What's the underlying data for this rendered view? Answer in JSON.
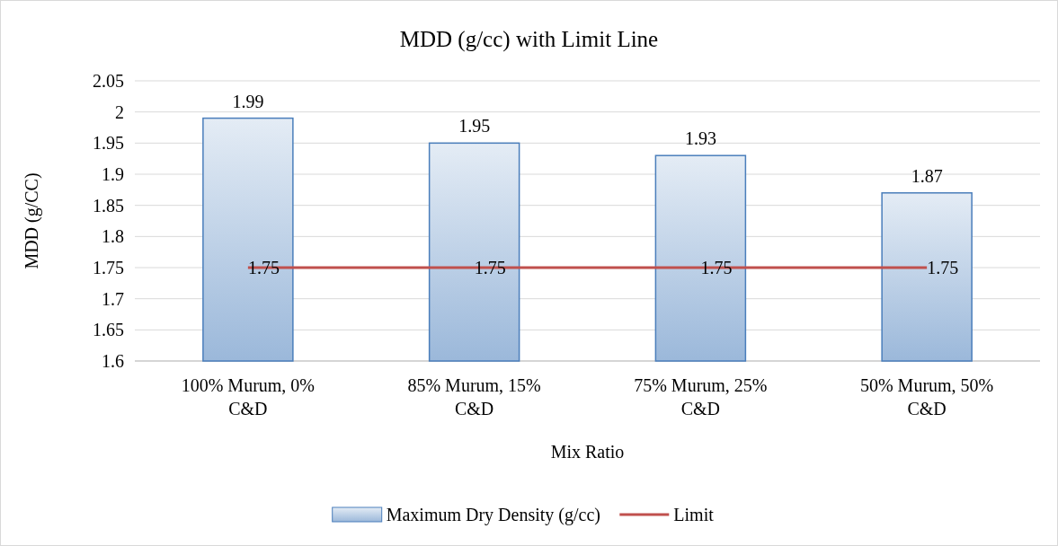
{
  "chart_data": {
    "type": "bar",
    "title": "MDD (g/cc) with Limit Line",
    "xlabel": "Mix Ratio",
    "ylabel": "MDD (g/CC)",
    "categories": [
      "100% Murum, 0% C&D",
      "85% Murum, 15% C&D",
      "75% Murum, 25% C&D",
      "50% Murum, 50% C&D"
    ],
    "series": [
      {
        "name": "Maximum Dry Density (g/cc)",
        "color": "#4a7ebb",
        "values": [
          1.99,
          1.95,
          1.93,
          1.87
        ]
      },
      {
        "name": "Limit",
        "type": "line",
        "color": "#c0504d",
        "values": [
          1.75,
          1.75,
          1.75,
          1.75
        ]
      }
    ],
    "ylim": [
      1.6,
      2.05
    ],
    "yticks": [
      1.6,
      1.65,
      1.7,
      1.75,
      1.8,
      1.85,
      1.9,
      1.95,
      2,
      2.05
    ],
    "grid": "y",
    "legend": "bottom",
    "data_labels": true
  }
}
